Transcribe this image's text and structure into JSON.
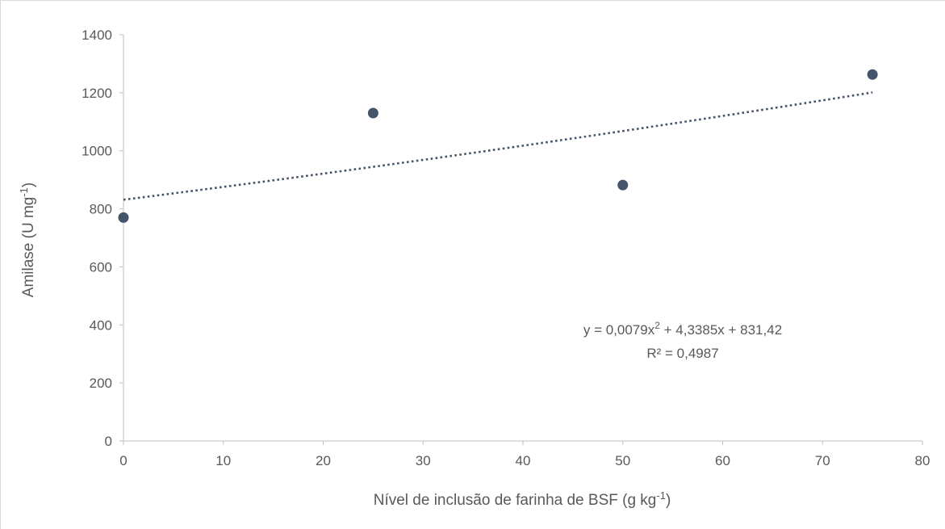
{
  "chart_data": {
    "type": "scatter",
    "xlabel": {
      "main": "Nível de inclusão de farinha de BSF (g kg",
      "sup": "-1",
      "end": ")"
    },
    "ylabel": {
      "main": "Amilase (U mg",
      "sup": "-1",
      "end": ")"
    },
    "xlim": [
      0,
      80
    ],
    "ylim": [
      0,
      1400
    ],
    "xticks": [
      0,
      10,
      20,
      30,
      40,
      50,
      60,
      70,
      80
    ],
    "yticks": [
      0,
      200,
      400,
      600,
      800,
      1000,
      1200,
      1400
    ],
    "grid": false,
    "series": [
      {
        "color": "#44546a",
        "points": [
          {
            "x": 0,
            "y": 770
          },
          {
            "x": 25,
            "y": 1130
          },
          {
            "x": 50,
            "y": 882
          },
          {
            "x": 75,
            "y": 1263
          }
        ]
      }
    ],
    "trendline": {
      "type": "polynomial",
      "coefficients": {
        "a": 0.0079,
        "b": 4.3385,
        "c": 831.42
      },
      "x_range": [
        0,
        75
      ],
      "style": "dotted",
      "color": "#44546a"
    },
    "annotations": {
      "equation": {
        "pre": "y = 0,0079x",
        "sup": "2",
        "post": " + 4,3385x + 831,42"
      },
      "r_squared": "R² = 0,4987"
    }
  }
}
